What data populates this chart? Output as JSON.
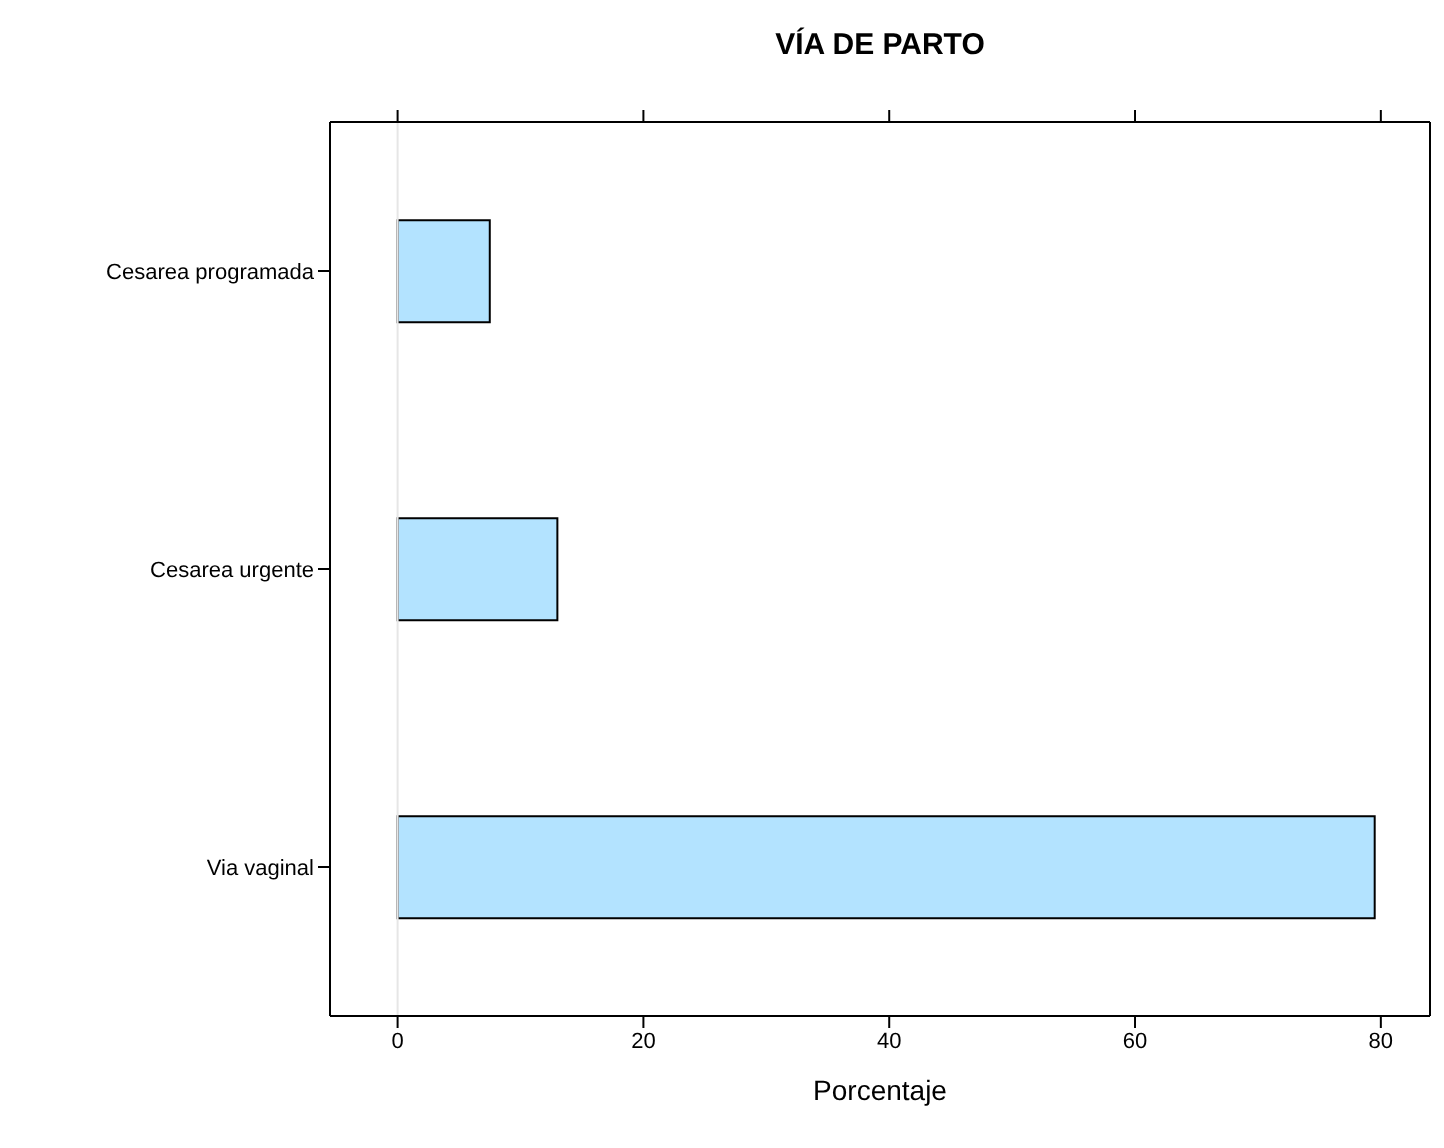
{
  "chart_data": {
    "type": "bar",
    "orientation": "horizontal",
    "title": "VÍA DE PARTO",
    "xlabel": "Porcentaje",
    "categories": [
      "Cesarea programada",
      "Cesarea urgente",
      "Via vaginal"
    ],
    "values": [
      7.5,
      13,
      79.5
    ],
    "color": "#b3e3ff",
    "xlim": [
      -5.5,
      84
    ],
    "xticks": [
      0,
      20,
      40,
      60,
      80
    ],
    "ref_lines": [
      {
        "axis": "x",
        "value": 0,
        "color": "#e6e6e6"
      }
    ],
    "grid": false,
    "legend": false
  }
}
